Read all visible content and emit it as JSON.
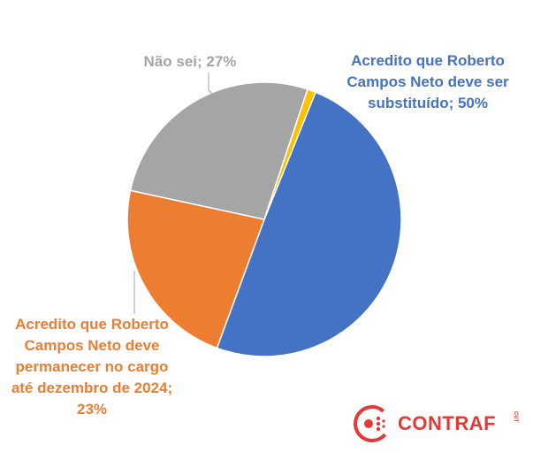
{
  "chart_data": {
    "type": "pie",
    "slices": [
      {
        "label": "Acredito que Roberto Campos Neto deve ser substituído; 50%",
        "value": 50,
        "color": "#4472C4"
      },
      {
        "label": "Acredito que Roberto Campos Neto deve permanecer no cargo até dezembro de 2024; 23%",
        "value": 23,
        "color": "#ED7D31"
      },
      {
        "label": "Não sei; 27%",
        "value": 27,
        "color": "#A5A5A5"
      },
      {
        "label": "",
        "value": 1,
        "color": "#FFC000"
      }
    ],
    "labels": {
      "naosei": [
        "Não sei; 27%"
      ],
      "substituido": [
        "Acredito que Roberto",
        "Campos Neto deve ser",
        "substituído; 50%"
      ],
      "permanecer": [
        "Acredito que Roberto",
        "Campos Neto deve",
        "permanecer no cargo",
        "até dezembro de 2024;",
        "23%"
      ]
    },
    "label_colors": {
      "naosei": "#A5A5A5",
      "substituido": "#4472C4",
      "permanecer": "#ED7D31"
    }
  },
  "logo": {
    "text": "CONTRAF",
    "sub": "CUT",
    "color": "#E53935"
  }
}
